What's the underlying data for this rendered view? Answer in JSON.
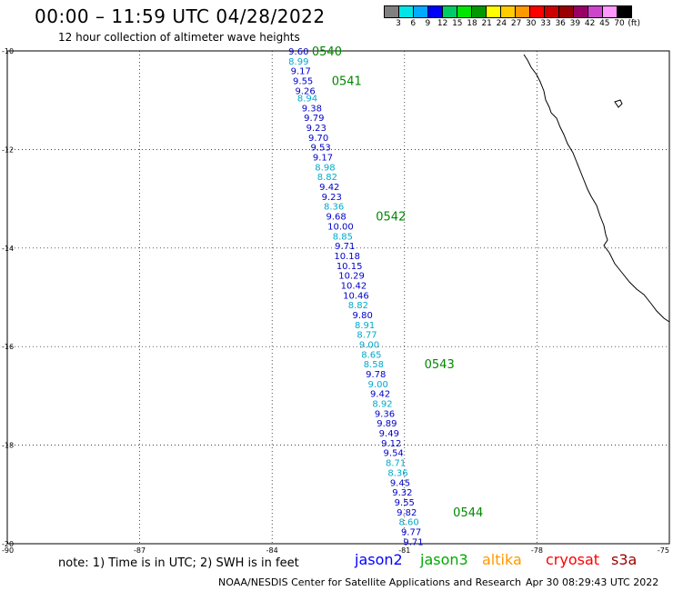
{
  "header": {
    "title": "00:00 – 11:59 UTC 04/28/2022",
    "subtitle": "12 hour collection of altimeter wave heights"
  },
  "color_scale": {
    "colors": [
      "#808080",
      "#00e6e6",
      "#00aaff",
      "#0000ff",
      "#00cc66",
      "#00e600",
      "#009900",
      "#ffff00",
      "#ffcc00",
      "#ff9900",
      "#ff0000",
      "#cc0000",
      "#990000",
      "#990066",
      "#cc44cc",
      "#ff99ff",
      "#000000"
    ],
    "labels": [
      "3",
      "6",
      "9",
      "12",
      "15",
      "18",
      "21",
      "24",
      "27",
      "30",
      "33",
      "36",
      "39",
      "42",
      "45",
      "70",
      "(ft)"
    ]
  },
  "axes": {
    "lat_labels": [
      "-10",
      "-12",
      "-14",
      "-16",
      "-18",
      "-20"
    ],
    "lon_labels": [
      "-90",
      "-87",
      "-84",
      "-81",
      "-78",
      "-75"
    ]
  },
  "chart_data": {
    "type": "scatter",
    "lon_range": [
      -90,
      -75
    ],
    "lat_range": [
      -20,
      -10
    ],
    "grid": true,
    "points": [
      {
        "lon": -83.4,
        "lat": -10.0,
        "v": "9.60",
        "sat": "jason2"
      },
      {
        "lon": -83.4,
        "lat": -10.2,
        "v": "8.99",
        "sat": "jason3"
      },
      {
        "lon": -83.35,
        "lat": -10.4,
        "v": "9.17",
        "sat": "jason2"
      },
      {
        "lon": -83.3,
        "lat": -10.6,
        "v": "9.55",
        "sat": "jason2"
      },
      {
        "lon": -83.25,
        "lat": -10.8,
        "v": "9.26",
        "sat": "jason2"
      },
      {
        "lon": -83.2,
        "lat": -10.95,
        "v": "8.94",
        "sat": "jason3"
      },
      {
        "lon": -83.1,
        "lat": -11.15,
        "v": "9.38",
        "sat": "jason2"
      },
      {
        "lon": -83.05,
        "lat": -11.35,
        "v": "9.79",
        "sat": "jason2"
      },
      {
        "lon": -83.0,
        "lat": -11.55,
        "v": "9.23",
        "sat": "jason2"
      },
      {
        "lon": -82.95,
        "lat": -11.75,
        "v": "9.70",
        "sat": "jason2"
      },
      {
        "lon": -82.9,
        "lat": -11.95,
        "v": "9.53",
        "sat": "jason2"
      },
      {
        "lon": -82.85,
        "lat": -12.15,
        "v": "9.17",
        "sat": "jason2"
      },
      {
        "lon": -82.8,
        "lat": -12.35,
        "v": "8.98",
        "sat": "jason3"
      },
      {
        "lon": -82.75,
        "lat": -12.55,
        "v": "8.82",
        "sat": "jason3"
      },
      {
        "lon": -82.7,
        "lat": -12.75,
        "v": "9.42",
        "sat": "jason2"
      },
      {
        "lon": -82.65,
        "lat": -12.95,
        "v": "9.23",
        "sat": "jason2"
      },
      {
        "lon": -82.6,
        "lat": -13.15,
        "v": "8.36",
        "sat": "jason3"
      },
      {
        "lon": -82.55,
        "lat": -13.35,
        "v": "9.68",
        "sat": "jason2"
      },
      {
        "lon": -82.45,
        "lat": -13.55,
        "v": "10.00",
        "sat": "jason2"
      },
      {
        "lon": -82.4,
        "lat": -13.75,
        "v": "8.85",
        "sat": "jason3"
      },
      {
        "lon": -82.35,
        "lat": -13.95,
        "v": "9.71",
        "sat": "jason2"
      },
      {
        "lon": -82.3,
        "lat": -14.15,
        "v": "10.18",
        "sat": "jason2"
      },
      {
        "lon": -82.25,
        "lat": -14.35,
        "v": "10.15",
        "sat": "jason2"
      },
      {
        "lon": -82.2,
        "lat": -14.55,
        "v": "10.29",
        "sat": "jason2"
      },
      {
        "lon": -82.15,
        "lat": -14.75,
        "v": "10.42",
        "sat": "jason2"
      },
      {
        "lon": -82.1,
        "lat": -14.95,
        "v": "10.46",
        "sat": "jason2"
      },
      {
        "lon": -82.05,
        "lat": -15.15,
        "v": "8.82",
        "sat": "jason3"
      },
      {
        "lon": -81.95,
        "lat": -15.35,
        "v": "9.80",
        "sat": "jason2"
      },
      {
        "lon": -81.9,
        "lat": -15.55,
        "v": "8.91",
        "sat": "jason3"
      },
      {
        "lon": -81.85,
        "lat": -15.75,
        "v": "8.77",
        "sat": "jason3"
      },
      {
        "lon": -81.8,
        "lat": -15.95,
        "v": "9.00",
        "sat": "jason3"
      },
      {
        "lon": -81.75,
        "lat": -16.15,
        "v": "8.65",
        "sat": "jason3"
      },
      {
        "lon": -81.7,
        "lat": -16.35,
        "v": "8.58",
        "sat": "jason3"
      },
      {
        "lon": -81.65,
        "lat": -16.55,
        "v": "9.78",
        "sat": "jason2"
      },
      {
        "lon": -81.6,
        "lat": -16.75,
        "v": "9.00",
        "sat": "jason3"
      },
      {
        "lon": -81.55,
        "lat": -16.95,
        "v": "9.42",
        "sat": "jason2"
      },
      {
        "lon": -81.5,
        "lat": -17.15,
        "v": "8.92",
        "sat": "jason3"
      },
      {
        "lon": -81.45,
        "lat": -17.35,
        "v": "9.36",
        "sat": "jason2"
      },
      {
        "lon": -81.4,
        "lat": -17.55,
        "v": "9.89",
        "sat": "jason2"
      },
      {
        "lon": -81.35,
        "lat": -17.75,
        "v": "9.49",
        "sat": "jason2"
      },
      {
        "lon": -81.3,
        "lat": -17.95,
        "v": "9.12",
        "sat": "jason2"
      },
      {
        "lon": -81.25,
        "lat": -18.15,
        "v": "9.54",
        "sat": "jason2"
      },
      {
        "lon": -81.2,
        "lat": -18.35,
        "v": "8.71",
        "sat": "jason3"
      },
      {
        "lon": -81.15,
        "lat": -18.55,
        "v": "8.36",
        "sat": "jason3"
      },
      {
        "lon": -81.1,
        "lat": -18.75,
        "v": "9.45",
        "sat": "jason2"
      },
      {
        "lon": -81.05,
        "lat": -18.95,
        "v": "9.32",
        "sat": "jason2"
      },
      {
        "lon": -81.0,
        "lat": -19.15,
        "v": "9.55",
        "sat": "jason2"
      },
      {
        "lon": -80.95,
        "lat": -19.35,
        "v": "9.82",
        "sat": "jason2"
      },
      {
        "lon": -80.9,
        "lat": -19.55,
        "v": "8.60",
        "sat": "jason3"
      },
      {
        "lon": -80.85,
        "lat": -19.75,
        "v": "9.77",
        "sat": "jason2"
      },
      {
        "lon": -80.8,
        "lat": -19.95,
        "v": "9.71",
        "sat": "jason2"
      }
    ],
    "time_labels": [
      {
        "lon": -83.1,
        "lat": -10.0,
        "label": "0540"
      },
      {
        "lon": -82.65,
        "lat": -10.6,
        "label": "0541"
      },
      {
        "lon": -81.65,
        "lat": -13.35,
        "label": "0542"
      },
      {
        "lon": -80.55,
        "lat": -16.35,
        "label": "0543"
      },
      {
        "lon": -79.9,
        "lat": -19.35,
        "label": "0544"
      }
    ]
  },
  "series_colors": {
    "jason2": "#0000cc",
    "jason3": "#00aacc"
  },
  "time_label_color": "#008800",
  "note": "note:  1) Time is in UTC;  2) SWH is in feet",
  "legend": [
    {
      "name": "jason2",
      "color": "#0000ff"
    },
    {
      "name": "jason3",
      "color": "#00aa00"
    },
    {
      "name": "altika",
      "color": "#ff9900"
    },
    {
      "name": "cryosat",
      "color": "#ff0000"
    },
    {
      "name": "s3a",
      "color": "#990000"
    }
  ],
  "footer": {
    "credit": "NOAA/NESDIS Center for Satellite Applications and Research",
    "timestamp": "Apr 30 08:29:43 UTC 2022"
  }
}
